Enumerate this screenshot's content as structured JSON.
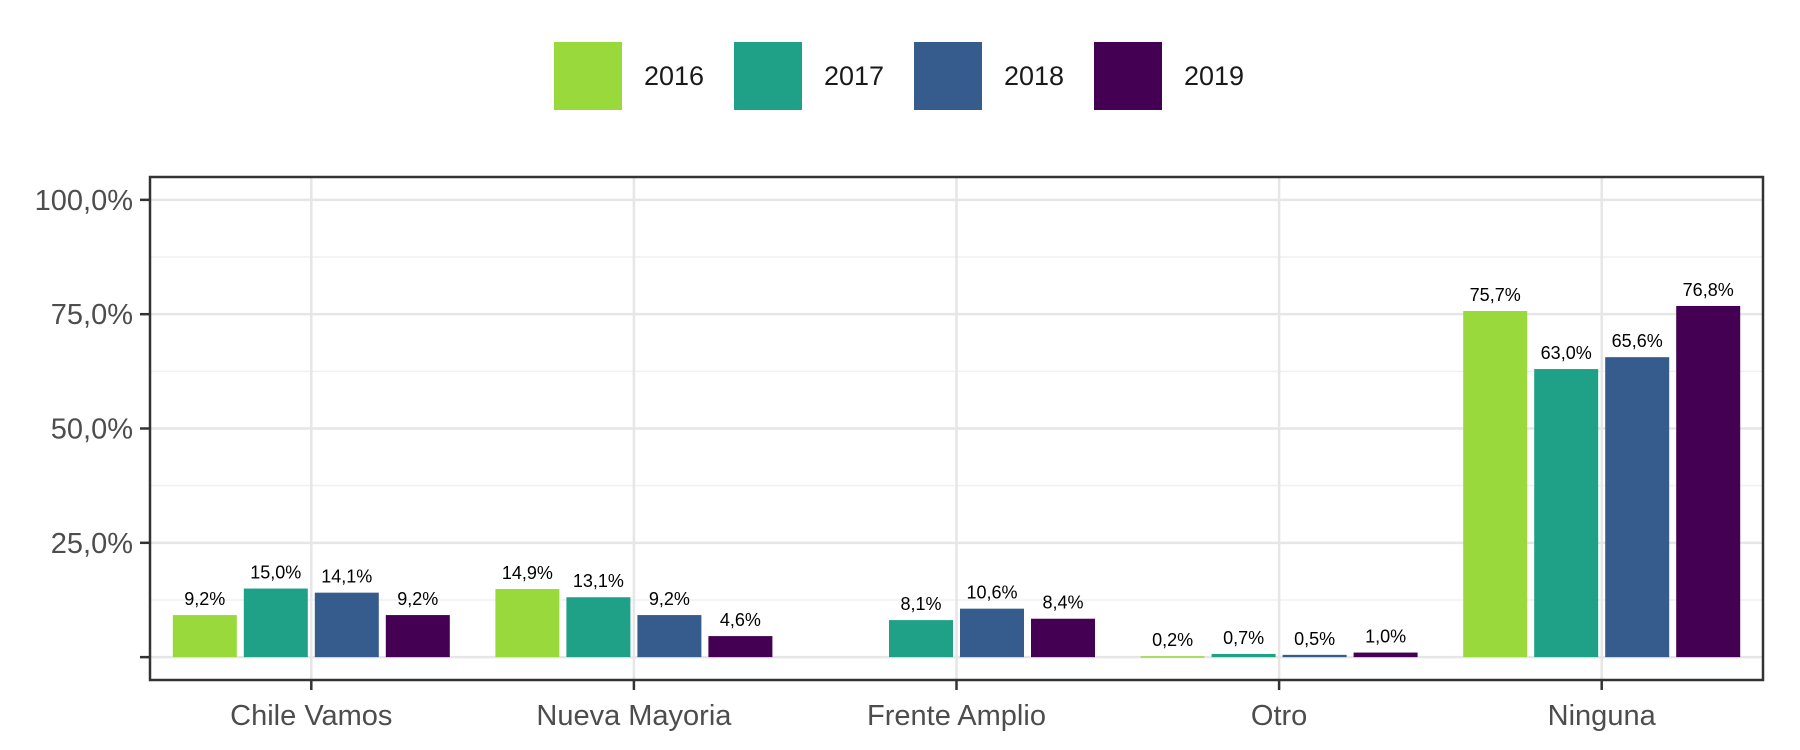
{
  "chart_data": {
    "type": "bar",
    "categories": [
      "Chile Vamos",
      "Nueva Mayoria",
      "Frente Amplio",
      "Otro",
      "Ninguna"
    ],
    "series": [
      {
        "name": "2016",
        "color": "#9ad93c",
        "values": [
          9.2,
          14.9,
          null,
          0.2,
          75.7
        ],
        "labels": [
          "9,2%",
          "14,9%",
          null,
          "0,2%",
          "75,7%"
        ]
      },
      {
        "name": "2017",
        "color": "#1fa187",
        "values": [
          15.0,
          13.1,
          8.1,
          0.7,
          63.0
        ],
        "labels": [
          "15,0%",
          "13,1%",
          "8,1%",
          "0,7%",
          "63,0%"
        ]
      },
      {
        "name": "2018",
        "color": "#365c8d",
        "values": [
          14.1,
          9.2,
          10.6,
          0.5,
          65.6
        ],
        "labels": [
          "14,1%",
          "9,2%",
          "10,6%",
          "0,5%",
          "65,6%"
        ]
      },
      {
        "name": "2019",
        "color": "#440154",
        "values": [
          9.2,
          4.6,
          8.4,
          1.0,
          76.8
        ],
        "labels": [
          "9,2%",
          "4,6%",
          "8,4%",
          "1,0%",
          "76,8%"
        ]
      }
    ],
    "yticks": [
      {
        "value": 25,
        "label": "25,0%"
      },
      {
        "value": 50,
        "label": "50,0%"
      },
      {
        "value": 75,
        "label": "75,0%"
      },
      {
        "value": 100,
        "label": "100,0%"
      }
    ],
    "ylim": [
      -5,
      105
    ],
    "grid": true,
    "legend_position": "top"
  }
}
